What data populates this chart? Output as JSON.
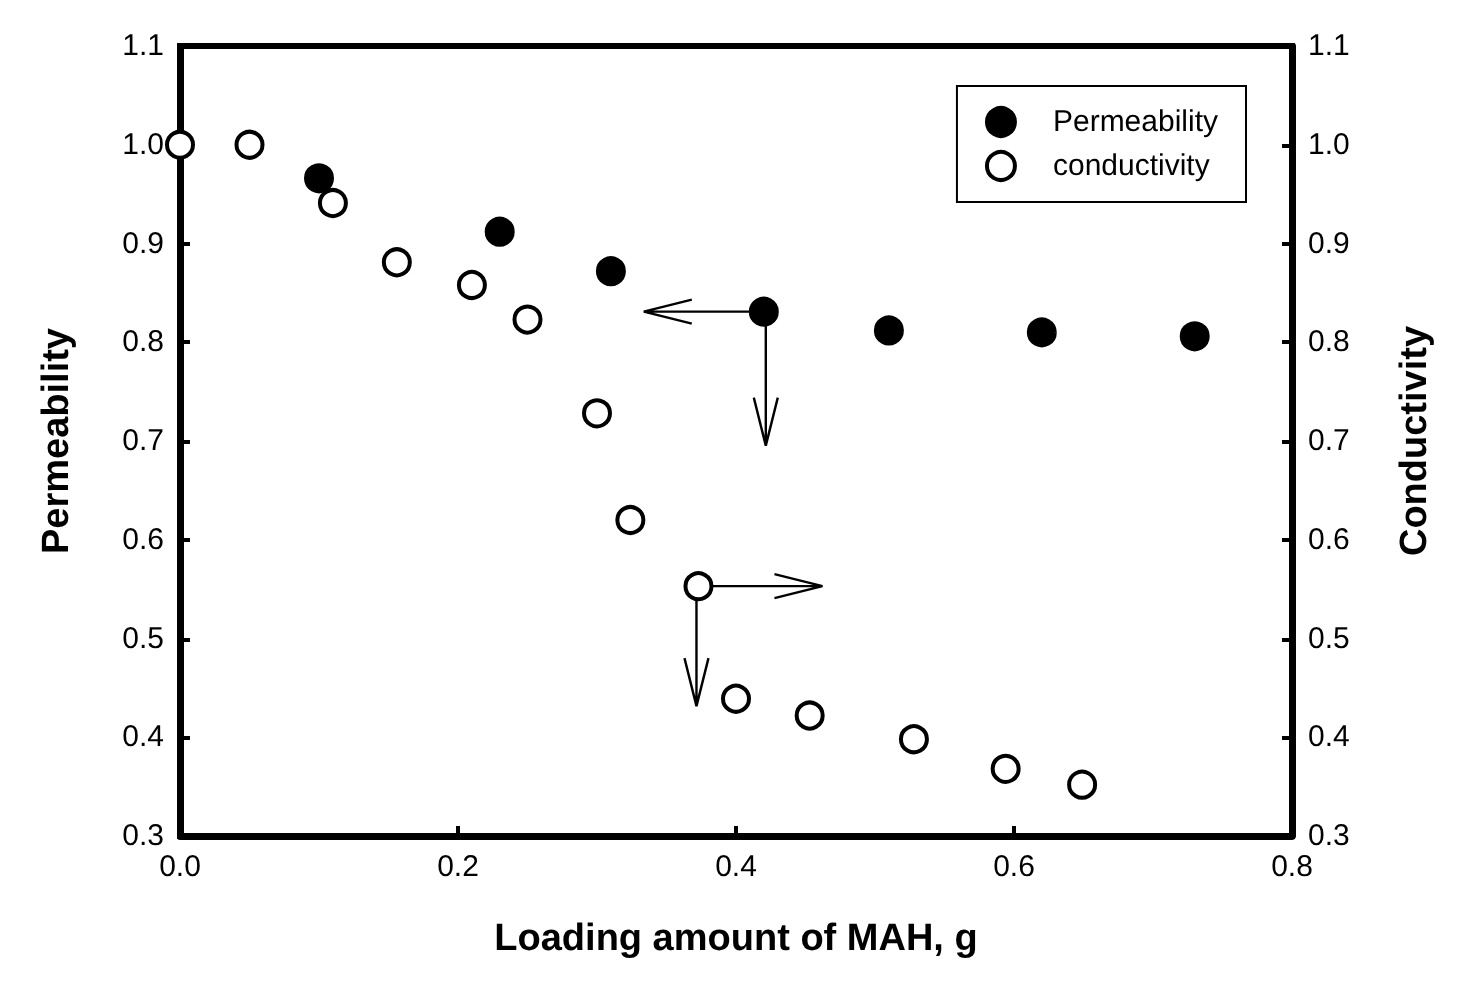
{
  "chart_data": {
    "type": "scatter",
    "xlabel": "Loading amount of MAH, g",
    "ylabel": "Permeability",
    "y2label": "Conductivity",
    "series": [
      {
        "name": "Permeability",
        "color": "#000000",
        "x": [
          0.1,
          0.23,
          0.31,
          0.42,
          0.51,
          0.62,
          0.73
        ],
        "values": [
          0.966,
          0.912,
          0.872,
          0.831,
          0.812,
          0.81,
          0.806
        ]
      },
      {
        "name": "conductivity",
        "color": "#ffffff",
        "axis": "y2",
        "x": [
          0,
          0.05,
          0.11,
          0.156,
          0.21,
          0.25,
          0.3,
          0.324,
          0.373,
          0.4,
          0.453,
          0.528,
          0.594,
          0.649
        ],
        "values": [
          1.0,
          1.0,
          0.941,
          0.881,
          0.858,
          0.823,
          0.728,
          0.62,
          0.553,
          0.439,
          0.422,
          0.398,
          0.368,
          0.352
        ]
      }
    ],
    "xlim": [
      0,
      0.8
    ],
    "xticks": [
      {
        "value": 0,
        "label": "0.0"
      },
      0.2,
      0.4,
      0.6,
      0.8
    ],
    "ylim": [
      0.3,
      1.1
    ],
    "yticks": [
      0.3,
      0.4,
      0.5,
      0.6,
      0.7,
      0.8,
      0.9,
      {
        "value": 1.0,
        "label": "1.0"
      },
      1.1
    ],
    "y2lim": [
      0.3,
      1.1
    ],
    "y2ticks": [
      0.3,
      0.4,
      0.5,
      0.6,
      0.7,
      0.8,
      0.9,
      {
        "value": 1.0,
        "label": "1.0"
      },
      1.1
    ],
    "legend": "top right",
    "grid": false,
    "marker": "circle"
  }
}
